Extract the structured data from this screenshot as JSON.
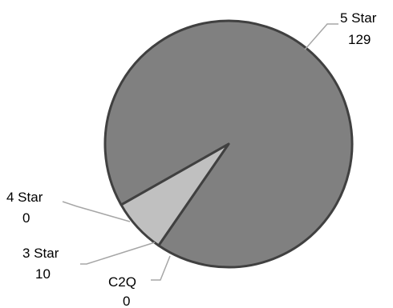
{
  "chart_data": {
    "type": "pie",
    "title": "",
    "categories": [
      "5 Star",
      "4 Star",
      "3 Star",
      "C2Q"
    ],
    "values": [
      129,
      0,
      10,
      0
    ],
    "labels": [
      {
        "category": "5 Star",
        "value": "129"
      },
      {
        "category": "4 Star",
        "value": "0"
      },
      {
        "category": "3 Star",
        "value": "10"
      },
      {
        "category": "C2Q",
        "value": "0"
      }
    ],
    "colors": [
      "#808080",
      "#808080",
      "#c0c0c0",
      "#808080"
    ],
    "border_color": "#404040",
    "leader_color": "#a6a6a6",
    "legend": "none",
    "label_placement": "outside-with-leader-lines"
  }
}
